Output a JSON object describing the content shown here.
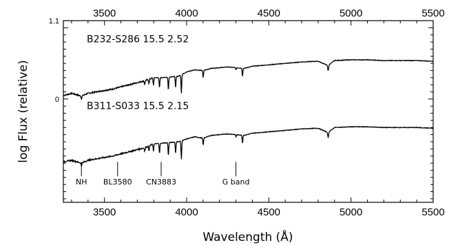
{
  "chart_data": {
    "type": "line",
    "xlabel": "Wavelength (Å)",
    "ylabel": "log Flux (relative)",
    "xlim": [
      3250,
      5500
    ],
    "ylim": [
      -1.45,
      1.1
    ],
    "x_ticks": [
      "3500",
      "4000",
      "4500",
      "5000",
      "5500"
    ],
    "x_tick_values": [
      3500,
      4000,
      4500,
      5000,
      5500
    ],
    "x_ticks_top": [
      "3500",
      "4000",
      "4500",
      "5000",
      "5500"
    ],
    "y_ticks": [
      "0",
      "1.1"
    ],
    "y_tick_values": [
      0,
      1.1
    ],
    "series": [
      {
        "name": "B232-S286  15.5  2.52",
        "x": [
          3250,
          3300,
          3360,
          3400,
          3450,
          3500,
          3550,
          3600,
          3650,
          3700,
          3750,
          3800,
          3850,
          3900,
          3950,
          4000,
          4050,
          4100,
          4150,
          4200,
          4250,
          4300,
          4350,
          4400,
          4500,
          4600,
          4700,
          4800,
          4861,
          4900,
          5000,
          5100,
          5200,
          5300,
          5400,
          5500
        ],
        "y": [
          0.05,
          0.08,
          0.04,
          0.08,
          0.1,
          0.12,
          0.14,
          0.17,
          0.2,
          0.23,
          0.26,
          0.3,
          0.3,
          0.31,
          0.32,
          0.38,
          0.41,
          0.4,
          0.43,
          0.44,
          0.45,
          0.44,
          0.43,
          0.46,
          0.48,
          0.5,
          0.52,
          0.53,
          0.47,
          0.54,
          0.55,
          0.55,
          0.54,
          0.54,
          0.54,
          0.53
        ]
      },
      {
        "name": "B311-S033  15.5  2.15",
        "x": [
          3250,
          3300,
          3360,
          3400,
          3450,
          3500,
          3550,
          3600,
          3650,
          3700,
          3750,
          3800,
          3850,
          3900,
          3950,
          4000,
          4050,
          4100,
          4150,
          4200,
          4250,
          4300,
          4350,
          4400,
          4500,
          4600,
          4700,
          4800,
          4861,
          4900,
          5000,
          5100,
          5200,
          5300,
          5400,
          5500
        ],
        "y": [
          -0.88,
          -0.86,
          -0.9,
          -0.86,
          -0.84,
          -0.82,
          -0.8,
          -0.77,
          -0.74,
          -0.71,
          -0.68,
          -0.63,
          -0.62,
          -0.61,
          -0.6,
          -0.56,
          -0.53,
          -0.55,
          -0.51,
          -0.5,
          -0.49,
          -0.5,
          -0.51,
          -0.48,
          -0.46,
          -0.44,
          -0.42,
          -0.41,
          -0.47,
          -0.4,
          -0.39,
          -0.39,
          -0.4,
          -0.4,
          -0.4,
          -0.41
        ]
      }
    ],
    "absorption_lines": [
      {
        "x": 3360,
        "depth": 0.04
      },
      {
        "x": 3745,
        "depth": 0.05
      },
      {
        "x": 3771,
        "depth": 0.06
      },
      {
        "x": 3798,
        "depth": 0.1
      },
      {
        "x": 3835,
        "depth": 0.14
      },
      {
        "x": 3889,
        "depth": 0.18
      },
      {
        "x": 3933,
        "depth": 0.16
      },
      {
        "x": 3968,
        "depth": 0.26
      },
      {
        "x": 4101,
        "depth": 0.1
      },
      {
        "x": 4300,
        "depth": 0.03
      },
      {
        "x": 4340,
        "depth": 0.11
      },
      {
        "x": 4861,
        "depth": 0.07
      }
    ],
    "annotations": [
      {
        "text": "NH",
        "x": 3360
      },
      {
        "text": "BL3580",
        "x": 3580
      },
      {
        "text": "CN3883",
        "x": 3845
      },
      {
        "text": "G band",
        "x": 4300
      }
    ],
    "annotation_y": -1.22,
    "grid": false,
    "legend": "none"
  }
}
